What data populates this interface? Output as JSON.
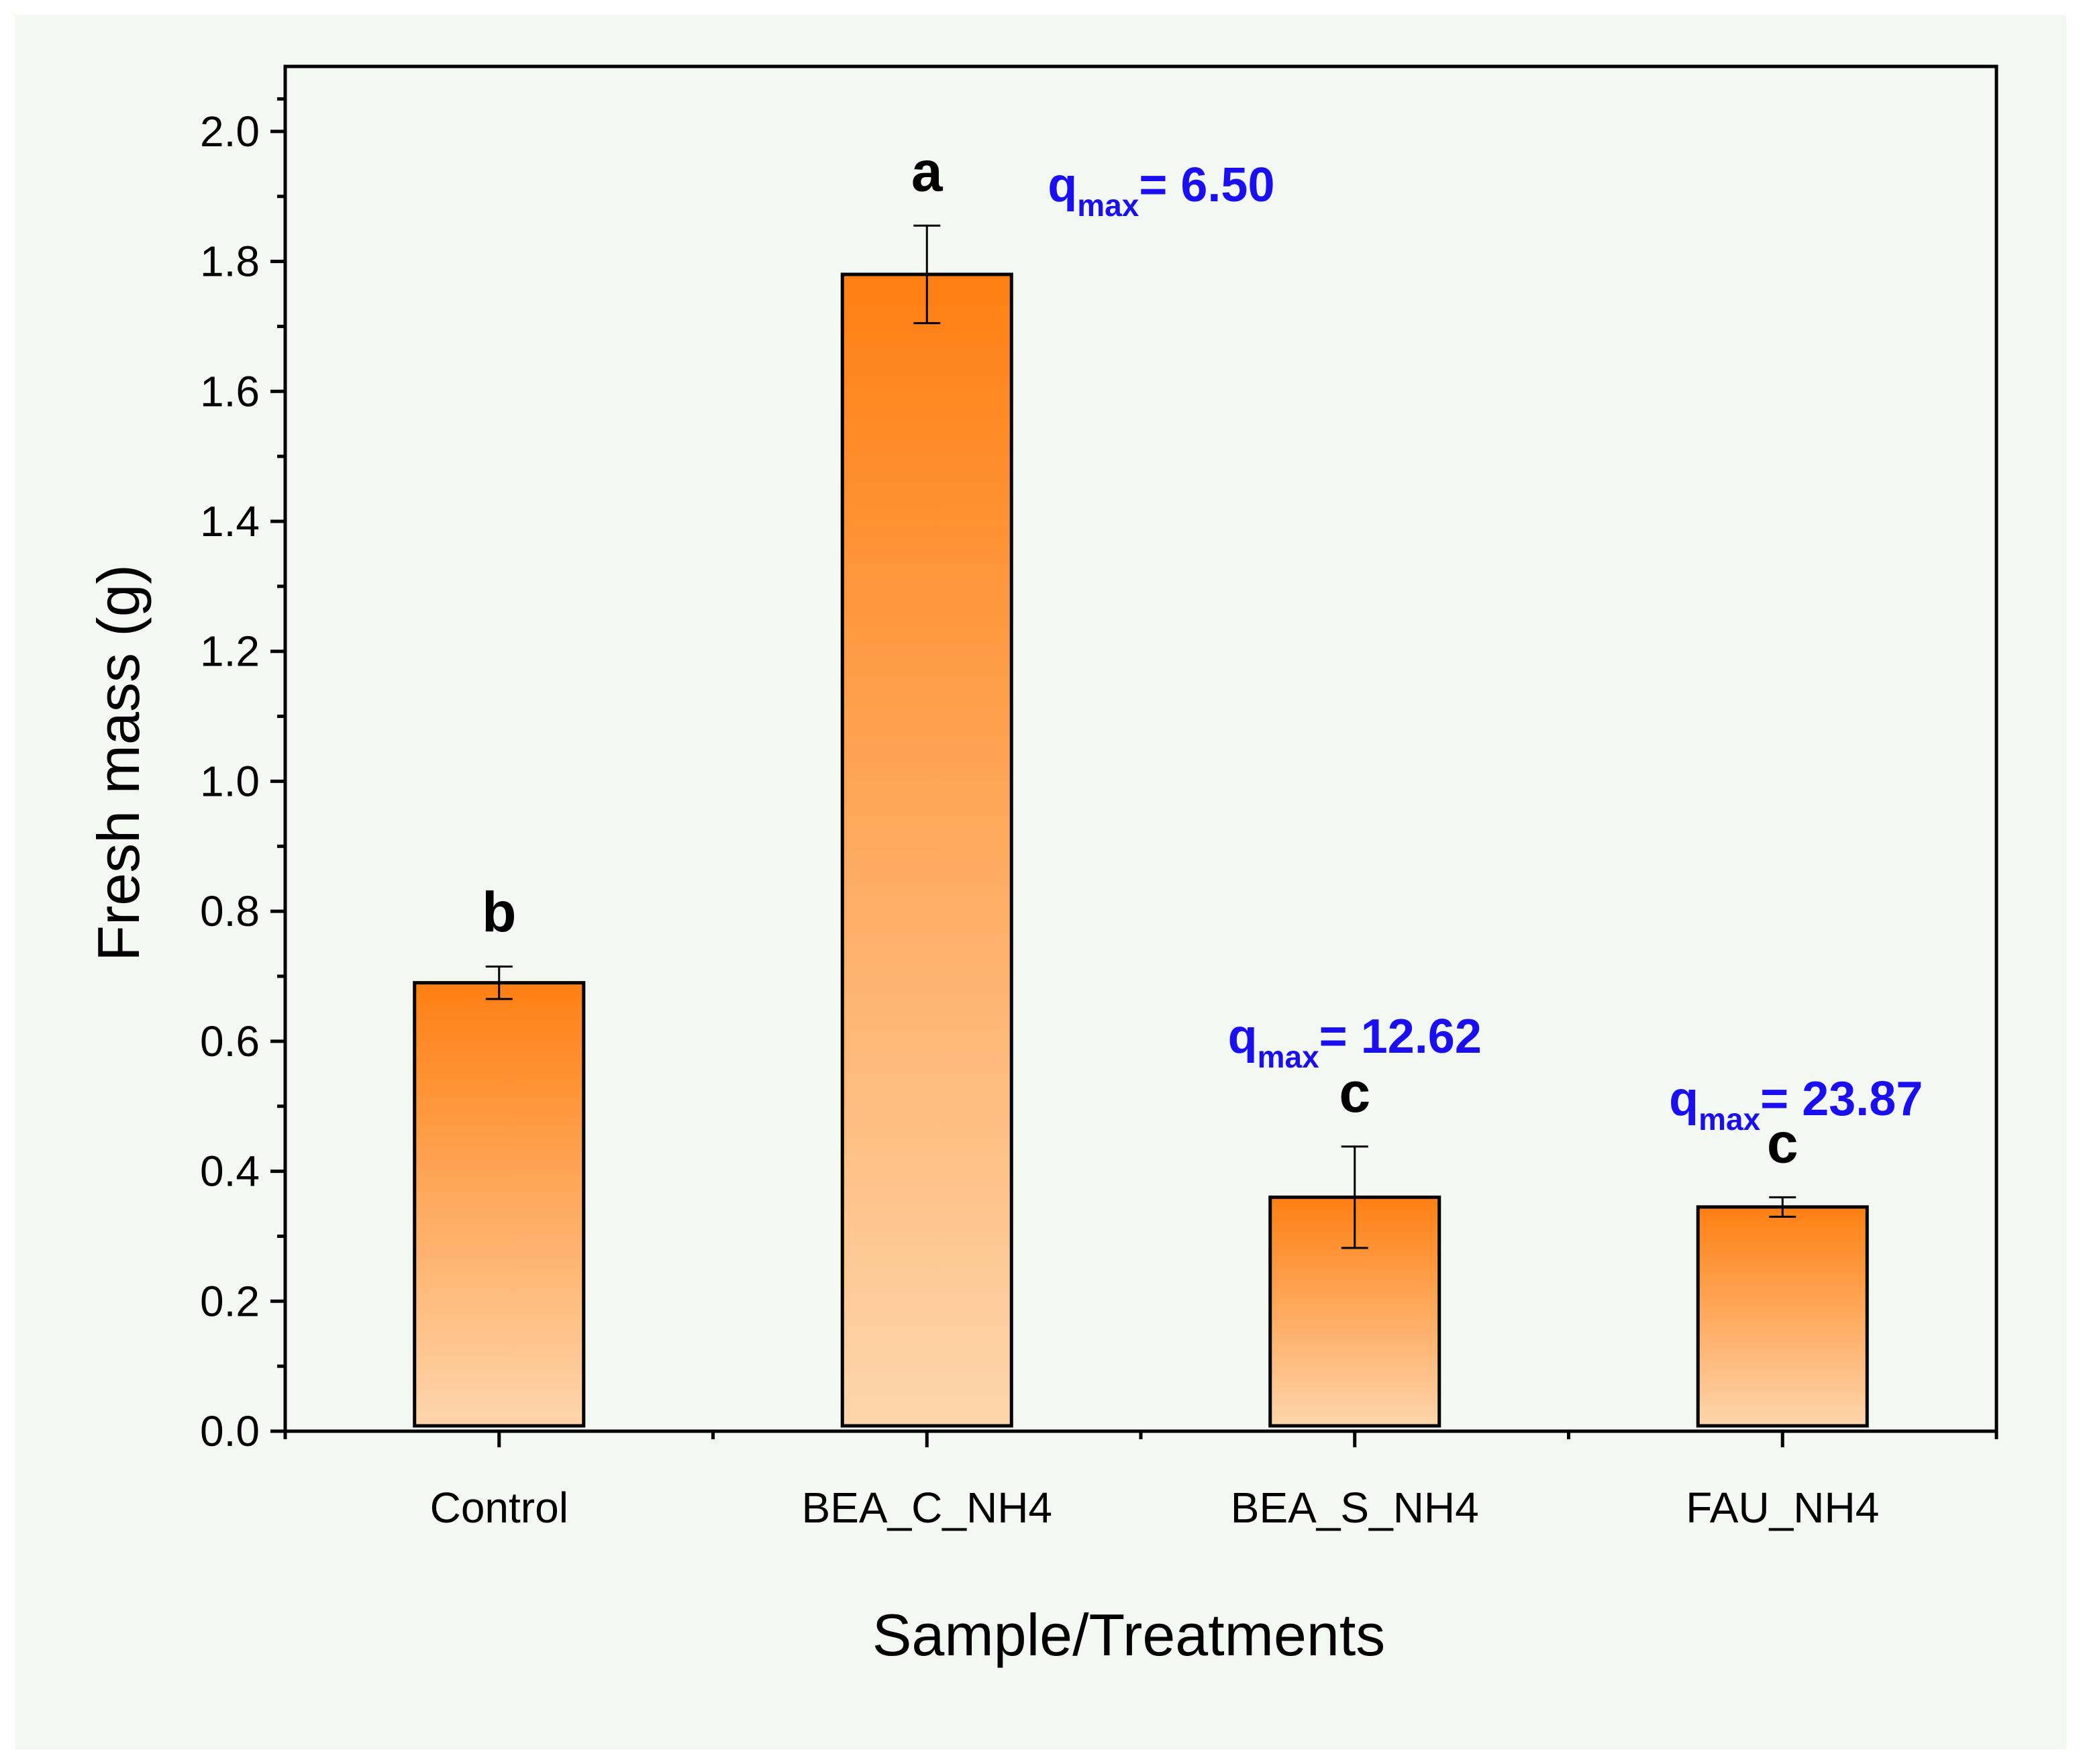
{
  "chart_data": {
    "type": "bar",
    "xlabel": "Sample/Treatments",
    "ylabel": "Fresh mass (g)",
    "ylim": [
      0,
      2.1
    ],
    "yticks": [
      0.0,
      0.2,
      0.4,
      0.6,
      0.8,
      1.0,
      1.2,
      1.4,
      1.6,
      1.8,
      2.0
    ],
    "ytick_labels": [
      "0.0",
      "0.2",
      "0.4",
      "0.6",
      "0.8",
      "1.0",
      "1.2",
      "1.4",
      "1.6",
      "1.8",
      "2.0"
    ],
    "grid": false,
    "categories": [
      "Control",
      "BEA_C_NH4",
      "BEA_S_NH4",
      "FAU_NH4"
    ],
    "values": [
      0.69,
      1.78,
      0.36,
      0.345
    ],
    "errors": [
      0.025,
      0.075,
      0.078,
      0.015
    ],
    "significance_letters": [
      "b",
      "a",
      "c",
      "c"
    ],
    "annotations": [
      {
        "category": "BEA_C_NH4",
        "symbol": "q",
        "subscript": "max",
        "text": "= 6.50",
        "color": "#1a0ff0"
      },
      {
        "category": "BEA_S_NH4",
        "symbol": "q",
        "subscript": "max",
        "text": "= 12.62",
        "color": "#1a0ff0"
      },
      {
        "category": "FAU_NH4",
        "symbol": "q",
        "subscript": "max",
        "text": "= 23.87",
        "color": "#1a0ff0"
      }
    ],
    "colors": {
      "bar_top": "#ff7f12",
      "bar_bottom": "#fdd5ab",
      "bar_edge": "#000000",
      "annotation": "#1a0ff0"
    }
  }
}
